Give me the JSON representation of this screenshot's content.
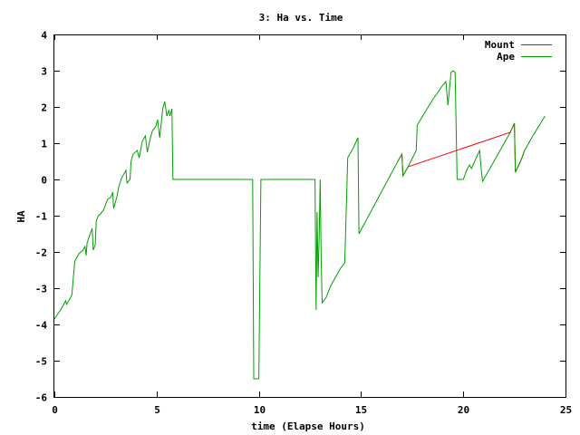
{
  "chart_data": {
    "type": "line",
    "title": "3: Ha vs. Time",
    "xlabel": "time (Elapse Hours)",
    "ylabel": "HA",
    "xlim": [
      0,
      25
    ],
    "ylim": [
      -6,
      4
    ],
    "xticks": [
      "0",
      "5",
      "10",
      "15",
      "20",
      "25"
    ],
    "yticks": [
      "4",
      "3",
      "2",
      "1",
      "0",
      "-1",
      "-2",
      "-3",
      "-4",
      "-5",
      "-6"
    ],
    "grid": false,
    "legend_position": "top-right",
    "series": [
      {
        "name": "Mount",
        "color": "#ff0000",
        "points": [
          [
            16.8,
            0.5
          ],
          [
            17.0,
            0.7
          ],
          [
            17.05,
            0.1
          ],
          [
            17.3,
            0.35
          ],
          [
            22.3,
            1.3
          ],
          [
            22.5,
            1.55
          ],
          [
            22.55,
            0.2
          ],
          [
            22.8,
            0.5
          ],
          [
            23.0,
            0.8
          ]
        ]
      },
      {
        "name": "Ape",
        "color": "#00a000",
        "points": [
          [
            0.0,
            -3.85
          ],
          [
            0.3,
            -3.6
          ],
          [
            0.45,
            -3.45
          ],
          [
            0.55,
            -3.35
          ],
          [
            0.6,
            -3.45
          ],
          [
            0.75,
            -3.3
          ],
          [
            0.85,
            -3.2
          ],
          [
            1.0,
            -2.25
          ],
          [
            1.2,
            -2.05
          ],
          [
            1.4,
            -1.95
          ],
          [
            1.5,
            -1.85
          ],
          [
            1.55,
            -2.1
          ],
          [
            1.6,
            -1.75
          ],
          [
            1.75,
            -1.5
          ],
          [
            1.85,
            -1.35
          ],
          [
            1.9,
            -1.95
          ],
          [
            2.0,
            -1.8
          ],
          [
            2.05,
            -1.15
          ],
          [
            2.15,
            -1.0
          ],
          [
            2.25,
            -0.95
          ],
          [
            2.4,
            -0.85
          ],
          [
            2.5,
            -0.7
          ],
          [
            2.6,
            -0.55
          ],
          [
            2.75,
            -0.5
          ],
          [
            2.85,
            -0.35
          ],
          [
            2.9,
            -0.8
          ],
          [
            3.05,
            -0.5
          ],
          [
            3.15,
            -0.2
          ],
          [
            3.3,
            0.05
          ],
          [
            3.5,
            0.25
          ],
          [
            3.55,
            -0.1
          ],
          [
            3.7,
            0.0
          ],
          [
            3.75,
            0.5
          ],
          [
            3.85,
            0.7
          ],
          [
            4.05,
            0.8
          ],
          [
            4.15,
            0.6
          ],
          [
            4.3,
            1.05
          ],
          [
            4.45,
            1.2
          ],
          [
            4.55,
            0.75
          ],
          [
            4.7,
            1.15
          ],
          [
            4.8,
            1.35
          ],
          [
            4.95,
            1.45
          ],
          [
            5.05,
            1.65
          ],
          [
            5.15,
            1.15
          ],
          [
            5.3,
            1.95
          ],
          [
            5.4,
            2.15
          ],
          [
            5.5,
            1.75
          ],
          [
            5.6,
            1.9
          ],
          [
            5.65,
            1.75
          ],
          [
            5.75,
            1.95
          ],
          [
            5.8,
            0.0
          ],
          [
            9.7,
            0.0
          ],
          [
            9.75,
            -5.5
          ],
          [
            10.0,
            -5.5
          ],
          [
            10.1,
            0.0
          ],
          [
            12.75,
            0.0
          ],
          [
            12.8,
            -3.6
          ],
          [
            12.85,
            -0.9
          ],
          [
            12.9,
            -2.7
          ],
          [
            12.95,
            -1.6
          ],
          [
            13.0,
            0.0
          ],
          [
            13.05,
            -2.2
          ],
          [
            13.1,
            -3.4
          ],
          [
            13.3,
            -3.25
          ],
          [
            13.5,
            -2.95
          ],
          [
            14.0,
            -2.45
          ],
          [
            14.2,
            -2.3
          ],
          [
            14.35,
            0.6
          ],
          [
            14.6,
            0.85
          ],
          [
            14.85,
            1.15
          ],
          [
            14.9,
            -1.5
          ],
          [
            16.8,
            0.5
          ],
          [
            17.0,
            0.7
          ],
          [
            17.05,
            0.1
          ],
          [
            17.3,
            0.35
          ],
          [
            17.7,
            0.8
          ],
          [
            17.75,
            1.5
          ],
          [
            18.5,
            2.2
          ],
          [
            19.0,
            2.6
          ],
          [
            19.15,
            2.7
          ],
          [
            19.25,
            2.05
          ],
          [
            19.4,
            2.95
          ],
          [
            19.5,
            3.0
          ],
          [
            19.6,
            2.95
          ],
          [
            19.7,
            0.0
          ],
          [
            20.0,
            0.0
          ],
          [
            20.2,
            0.3
          ],
          [
            20.3,
            0.4
          ],
          [
            20.4,
            0.3
          ],
          [
            20.6,
            0.55
          ],
          [
            20.8,
            0.8
          ],
          [
            20.9,
            0.15
          ],
          [
            20.95,
            -0.05
          ],
          [
            22.3,
            1.3
          ],
          [
            22.5,
            1.55
          ],
          [
            22.55,
            0.2
          ],
          [
            22.8,
            0.5
          ],
          [
            23.0,
            0.8
          ],
          [
            23.4,
            1.2
          ],
          [
            24.0,
            1.75
          ]
        ]
      }
    ]
  }
}
